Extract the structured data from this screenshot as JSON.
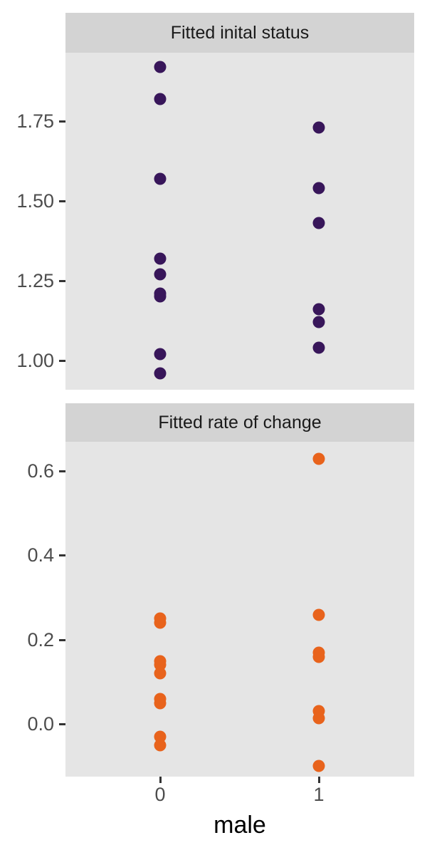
{
  "ui": {
    "xlabel": "male",
    "x_tick_labels": [
      "0",
      "1"
    ],
    "colors": {
      "panel_background": "#e5e5e5",
      "strip_background": "#d3d3d3",
      "initial_status_points": "#38165a",
      "rate_of_change_points": "#e8631c",
      "tick_text": "#4d4d4d",
      "strip_text": "#1a1a1a"
    }
  },
  "chart_data": [
    {
      "type": "scatter",
      "title": "Fitted inital status",
      "xlabel": "male",
      "x_categories": [
        "0",
        "1"
      ],
      "point_color": "#38165a",
      "grid": false,
      "legend": "none",
      "ylim": [
        0.9085,
        1.9643
      ],
      "yticks": [
        {
          "value": 1.0,
          "label": "1.00"
        },
        {
          "value": 1.25,
          "label": "1.25"
        },
        {
          "value": 1.5,
          "label": "1.50"
        },
        {
          "value": 1.75,
          "label": "1.75"
        }
      ],
      "series": [
        {
          "name": "male = 0",
          "x": "0",
          "values": [
            1.92,
            1.82,
            1.57,
            1.32,
            1.27,
            1.21,
            1.2,
            1.02,
            0.96
          ]
        },
        {
          "name": "male = 1",
          "x": "1",
          "values": [
            1.73,
            1.54,
            1.43,
            1.16,
            1.12,
            1.04
          ]
        }
      ]
    },
    {
      "type": "scatter",
      "title": "Fitted rate of change",
      "xlabel": "male",
      "x_categories": [
        "0",
        "1"
      ],
      "point_color": "#e8631c",
      "grid": false,
      "legend": "none",
      "ylim": [
        -0.125,
        0.6706
      ],
      "yticks": [
        {
          "value": 0.0,
          "label": "0.0"
        },
        {
          "value": 0.2,
          "label": "0.2"
        },
        {
          "value": 0.4,
          "label": "0.4"
        },
        {
          "value": 0.6,
          "label": "0.6"
        }
      ],
      "series": [
        {
          "name": "male = 0",
          "x": "0",
          "values": [
            0.25,
            0.24,
            0.15,
            0.14,
            0.12,
            0.06,
            0.05,
            -0.03,
            -0.05
          ]
        },
        {
          "name": "male = 1",
          "x": "1",
          "values": [
            0.63,
            0.26,
            0.17,
            0.16,
            0.03,
            0.014,
            -0.1
          ]
        }
      ]
    }
  ]
}
